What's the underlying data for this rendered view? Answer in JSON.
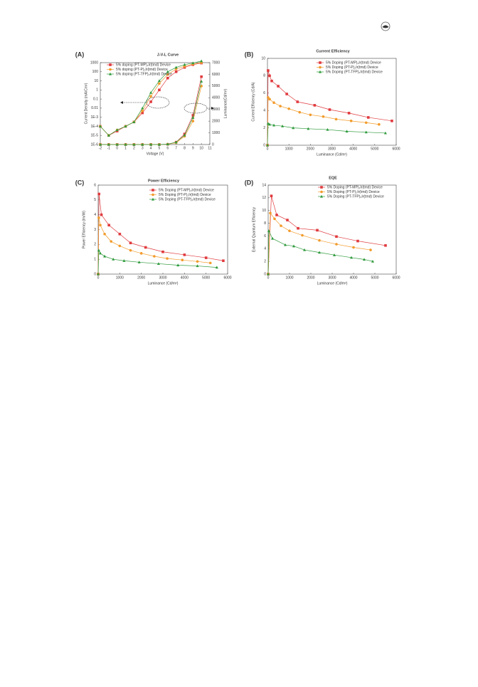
{
  "chart_data": [
    {
      "type": "line",
      "panel": "(A)",
      "title": "J-V-L Curve",
      "xlabel": "Voltage (V)",
      "ylabel": "Current Density (mA/Cm²)",
      "y2label": "Luminance(Cd/m²)",
      "x": [
        -2,
        -1,
        0,
        1,
        2,
        3,
        4,
        5,
        6,
        7,
        8,
        9,
        10
      ],
      "xlim": [
        -2,
        11
      ],
      "xticks": [
        -2,
        -1,
        0,
        1,
        2,
        3,
        4,
        5,
        6,
        7,
        8,
        9,
        10,
        11
      ],
      "ylog": true,
      "ylim": [
        1e-06,
        1000
      ],
      "yticks": [
        1000,
        100,
        10,
        1,
        0.1,
        0.01,
        {
          "value": 0.001,
          "label": "1E-3"
        },
        {
          "value": 0.0001,
          "label": "1E-4"
        },
        {
          "value": 1e-05,
          "label": "1E-5"
        },
        {
          "value": 1e-06,
          "label": "1E-6"
        }
      ],
      "y2lim": [
        0,
        7000
      ],
      "y2ticks": [
        0,
        1000,
        2000,
        3000,
        4000,
        5000,
        6000,
        7000
      ],
      "series": [
        {
          "name": "5% doping (PT-MP)₂Ir(tmd) Device",
          "color": "#e03a3e",
          "marker": "square",
          "values": [
            0.0001,
            1e-05,
            3e-05,
            0.0001,
            0.0003,
            0.003,
            0.05,
            1,
            20,
            100,
            300,
            600,
            900
          ]
        },
        {
          "name": "5% doping (PT-P)₂Ir(tmd) Device",
          "color": "#f29b2b",
          "marker": "circle",
          "values": [
            0.0001,
            1e-05,
            4e-05,
            0.0001,
            0.0003,
            0.005,
            0.2,
            5,
            50,
            200,
            400,
            700,
            1000
          ]
        },
        {
          "name": "5% doping (PT-TFP)₂Ir(tmd) Device",
          "color": "#2e9a3c",
          "marker": "triangle",
          "values": [
            0.0001,
            1e-05,
            4e-05,
            0.0001,
            0.0003,
            0.01,
            0.5,
            10,
            100,
            300,
            600,
            900,
            1500
          ]
        },
        {
          "color": "#e03a3e",
          "marker": "square",
          "axis": "y2",
          "values": [
            0,
            0,
            0,
            0,
            0,
            0,
            0,
            0,
            20,
            200,
            900,
            2500,
            5800
          ]
        },
        {
          "color": "#f29b2b",
          "marker": "circle",
          "axis": "y2",
          "values": [
            0,
            0,
            0,
            0,
            0,
            0,
            0,
            0,
            20,
            150,
            700,
            2000,
            5000
          ]
        },
        {
          "color": "#2e9a3c",
          "marker": "triangle",
          "axis": "y2",
          "values": [
            0,
            0,
            0,
            0,
            0,
            0,
            0,
            0,
            30,
            200,
            800,
            2300,
            5400
          ]
        }
      ]
    },
    {
      "type": "line",
      "panel": "(B)",
      "title": "Current Efficiency",
      "xlabel": "Luminance (Cd/m²)",
      "ylabel": "Current Efficiency (Cd/A)",
      "xlim": [
        0,
        6000
      ],
      "xticks": [
        0,
        1000,
        2000,
        3000,
        4000,
        5000,
        6000
      ],
      "ylim": [
        0,
        10
      ],
      "yticks": [
        0,
        2,
        4,
        6,
        8,
        10
      ],
      "series": [
        {
          "name": "5% Doping (PT-MP)₂Ir(tmd) Device",
          "color": "#e03a3e",
          "marker": "square",
          "x": [
            0,
            30,
            100,
            200,
            500,
            900,
            1400,
            2200,
            2900,
            3800,
            4700,
            5800
          ],
          "values": [
            0,
            8.6,
            8.0,
            7.4,
            6.8,
            5.9,
            5.0,
            4.6,
            4.1,
            3.7,
            3.2,
            2.8
          ]
        },
        {
          "name": "5% Doping (PT-P)₂Ir(tmd) Device",
          "color": "#f29b2b",
          "marker": "circle",
          "x": [
            0,
            30,
            100,
            300,
            600,
            1000,
            1500,
            2000,
            2600,
            3200,
            3900,
            4600,
            5200
          ],
          "values": [
            0,
            5.5,
            5.3,
            4.9,
            4.5,
            4.2,
            3.8,
            3.5,
            3.3,
            3.0,
            2.8,
            2.6,
            2.4
          ]
        },
        {
          "name": "5% Doping (PT-TFP)₂Ir(tmd) Device",
          "color": "#2e9a3c",
          "marker": "triangle",
          "x": [
            0,
            30,
            100,
            300,
            700,
            1200,
            1900,
            2800,
            3700,
            4600,
            5500
          ],
          "values": [
            0,
            2.5,
            2.4,
            2.3,
            2.2,
            2.0,
            1.9,
            1.8,
            1.6,
            1.5,
            1.4
          ]
        }
      ]
    },
    {
      "type": "line",
      "panel": "(C)",
      "title": "Power Efficiency",
      "xlabel": "Luminance (Cd/m²)",
      "ylabel": "Power Efficiency (lm/W)",
      "xlim": [
        0,
        6000
      ],
      "xticks": [
        0,
        1000,
        2000,
        3000,
        4000,
        5000,
        6000
      ],
      "ylim": [
        0,
        6
      ],
      "yticks": [
        0,
        1,
        2,
        3,
        4,
        5,
        6
      ],
      "series": [
        {
          "name": "5% Doping (PT-MP)₂Ir(tmd) Device",
          "color": "#e03a3e",
          "marker": "square",
          "x": [
            0,
            40,
            150,
            500,
            1000,
            1500,
            2200,
            3000,
            4000,
            5000,
            5800
          ],
          "values": [
            0,
            5.4,
            4.0,
            3.3,
            2.7,
            2.1,
            1.8,
            1.5,
            1.3,
            1.1,
            0.9
          ]
        },
        {
          "name": "5% Doping (PT-P)₂Ir(tmd) Device",
          "color": "#f29b2b",
          "marker": "circle",
          "x": [
            0,
            30,
            100,
            300,
            600,
            1000,
            1500,
            2000,
            2600,
            3200,
            3900,
            4600,
            5200
          ],
          "values": [
            0,
            3.8,
            3.3,
            2.7,
            2.2,
            1.9,
            1.6,
            1.4,
            1.2,
            1.05,
            0.95,
            0.85,
            0.75
          ]
        },
        {
          "name": "5% Doping (PT-TFP)₂Ir(tmd) Device",
          "color": "#2e9a3c",
          "marker": "triangle",
          "x": [
            0,
            30,
            100,
            300,
            700,
            1200,
            1900,
            2800,
            3700,
            4600,
            5500
          ],
          "values": [
            0,
            1.6,
            1.4,
            1.2,
            1.0,
            0.9,
            0.8,
            0.7,
            0.6,
            0.55,
            0.45
          ]
        }
      ]
    },
    {
      "type": "line",
      "panel": "(D)",
      "title": "EQE",
      "xlabel": "Luminance (Cd/m²)",
      "ylabel": "External Quantum Efficiency",
      "xlim": [
        0,
        6000
      ],
      "xticks": [
        0,
        1000,
        2000,
        3000,
        4000,
        5000,
        6000
      ],
      "ylim": [
        0,
        14
      ],
      "yticks": [
        0,
        2,
        4,
        6,
        8,
        10,
        12,
        14
      ],
      "series": [
        {
          "name": "5% Doping (PT-MP)₂Ir(tmd) Device",
          "color": "#e03a3e",
          "marker": "square",
          "x": [
            0,
            150,
            400,
            900,
            1400,
            2300,
            3200,
            4200,
            5500
          ],
          "values": [
            0,
            12.3,
            9.3,
            8.5,
            7.2,
            6.9,
            5.9,
            5.2,
            4.5
          ]
        },
        {
          "name": "5% Doping (PT-P)₂Ir(tmd) Device",
          "color": "#f29b2b",
          "marker": "circle",
          "x": [
            0,
            100,
            300,
            600,
            1000,
            1600,
            2400,
            3200,
            4000,
            4800
          ],
          "values": [
            0,
            9.6,
            8.7,
            7.6,
            6.8,
            6.1,
            5.3,
            4.7,
            4.2,
            3.8
          ]
        },
        {
          "name": "5% Doping (PT-TFP)₂Ir(tmd) Device",
          "color": "#2e9a3c",
          "marker": "triangle",
          "x": [
            0,
            30,
            200,
            800,
            1200,
            1700,
            2400,
            3100,
            3900,
            4500,
            4900
          ],
          "values": [
            0,
            6.8,
            5.6,
            4.6,
            4.4,
            3.8,
            3.4,
            3.0,
            2.6,
            2.3,
            2.0
          ]
        }
      ]
    }
  ]
}
